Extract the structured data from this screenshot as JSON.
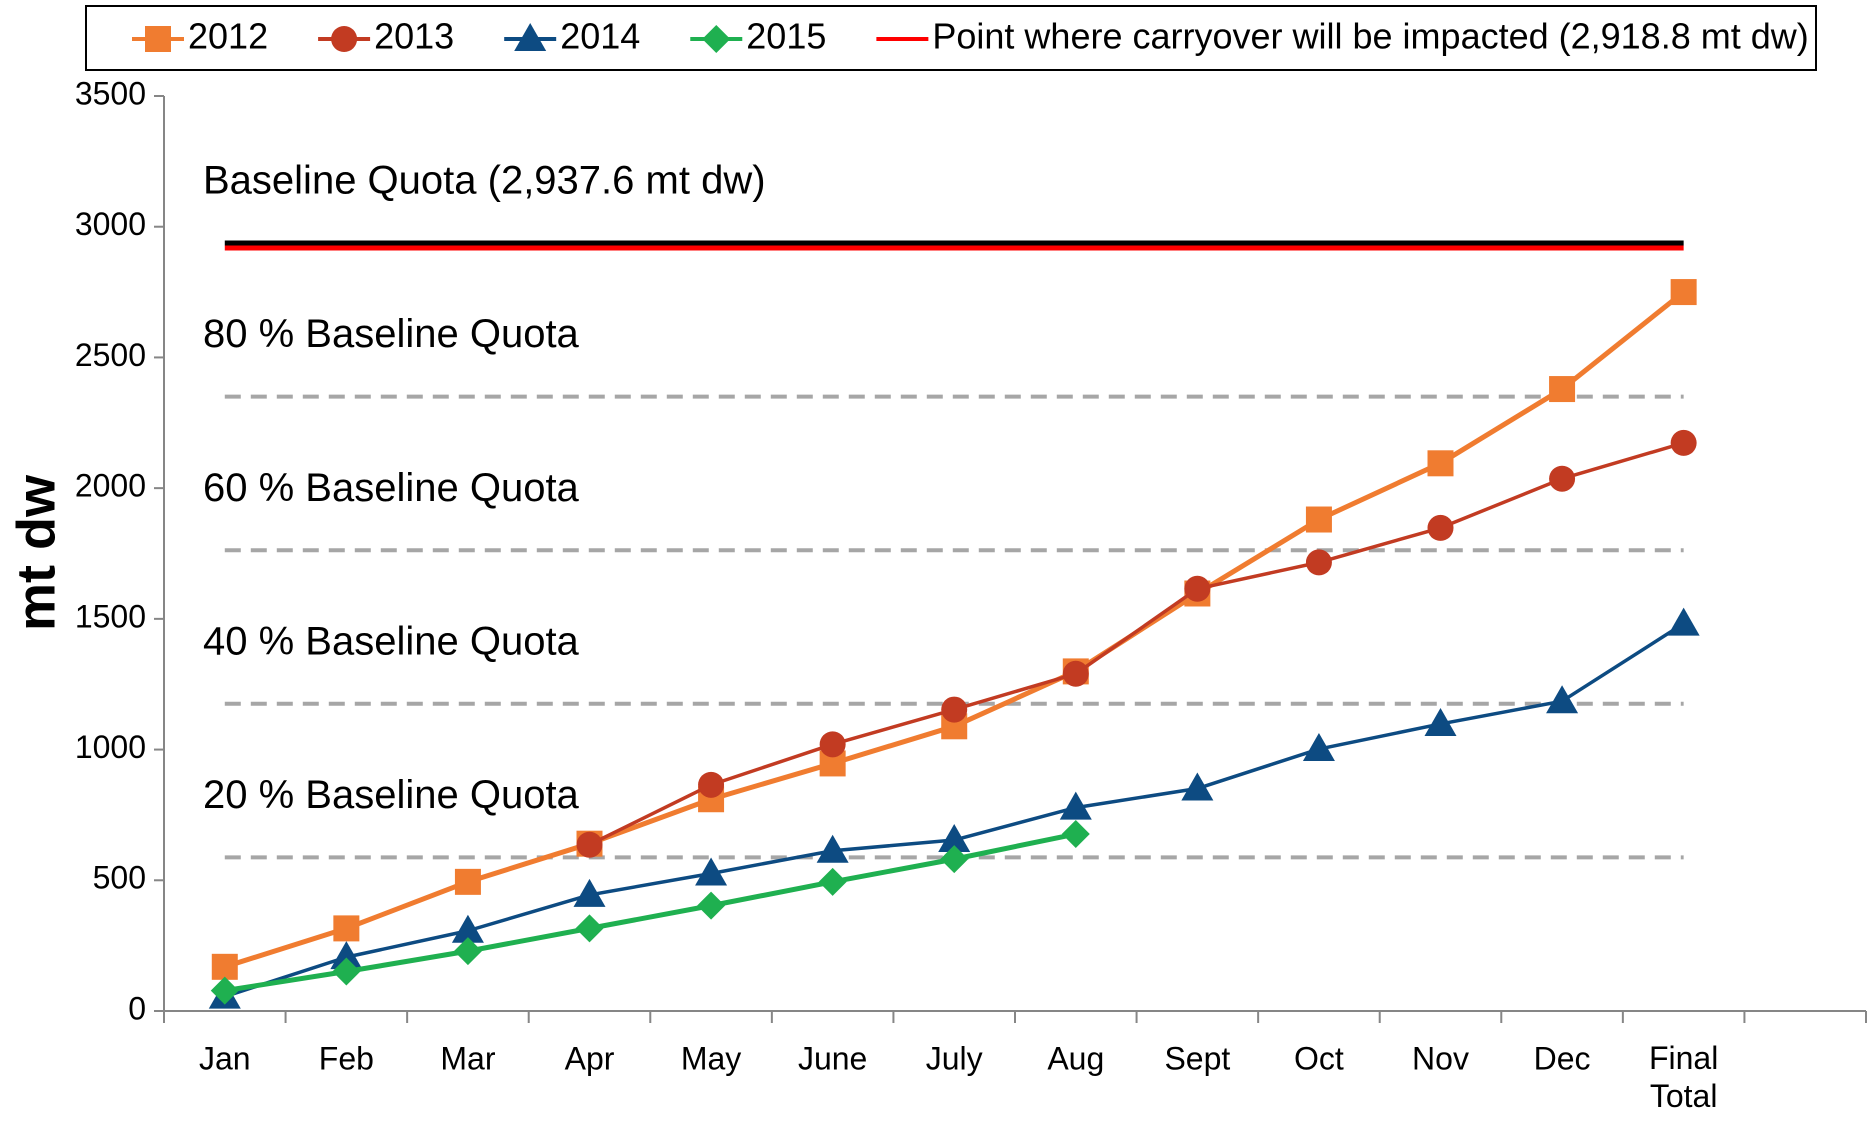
{
  "chart_data": {
    "type": "line",
    "ylabel": "mt dw",
    "categories": [
      "Jan",
      "Feb",
      "Mar",
      "Apr",
      "May",
      "June",
      "July",
      "Aug",
      "Sept",
      "Oct",
      "Nov",
      "Dec",
      "Final Total",
      null
    ],
    "series": [
      {
        "name": "2012",
        "color": "#f07c30",
        "marker": "square",
        "values": [
          169,
          316,
          494,
          640,
          810,
          947,
          1089,
          1299,
          1597,
          1880,
          2095,
          2379,
          2750,
          null
        ]
      },
      {
        "name": "2013",
        "color": "#c23b22",
        "marker": "circle",
        "values": [
          null,
          null,
          null,
          636,
          865,
          1020,
          1153,
          1290,
          1615,
          1716,
          1848,
          2036,
          2173,
          null
        ]
      },
      {
        "name": "2014",
        "color": "#0d4b82",
        "marker": "triangle",
        "values": [
          55,
          206,
          307,
          444,
          526,
          613,
          654,
          778,
          851,
          1002,
          1098,
          1185,
          1482,
          null
        ]
      },
      {
        "name": "2015",
        "color": "#1fb050",
        "marker": "diamond",
        "values": [
          78,
          151,
          229,
          316,
          403,
          494,
          581,
          677,
          null,
          null,
          null,
          null,
          null,
          null
        ]
      }
    ],
    "reference_lines": [
      {
        "label": "Baseline Quota (2,937.6 mt dw)",
        "value": 2937.6,
        "color": "#000000"
      },
      {
        "name": "Point where carryover will be impacted (2,918.8 mt dw)",
        "value": 2918.8,
        "color": "#ff0000"
      },
      {
        "label": "80 % Baseline Quota",
        "value": 2350.08,
        "color": "#a6a6a6",
        "dashed": true
      },
      {
        "label": "60 % Baseline Quota",
        "value": 1762.56,
        "color": "#a6a6a6",
        "dashed": true
      },
      {
        "label": "40 % Baseline Quota",
        "value": 1175.04,
        "color": "#a6a6a6",
        "dashed": true
      },
      {
        "label": "20 % Baseline Quota",
        "value": 587.52,
        "color": "#a6a6a6",
        "dashed": true
      }
    ],
    "ylim": [
      0,
      3500
    ],
    "yticks": [
      0,
      500,
      1000,
      1500,
      2000,
      2500,
      3000,
      3500
    ],
    "legend": "top"
  }
}
